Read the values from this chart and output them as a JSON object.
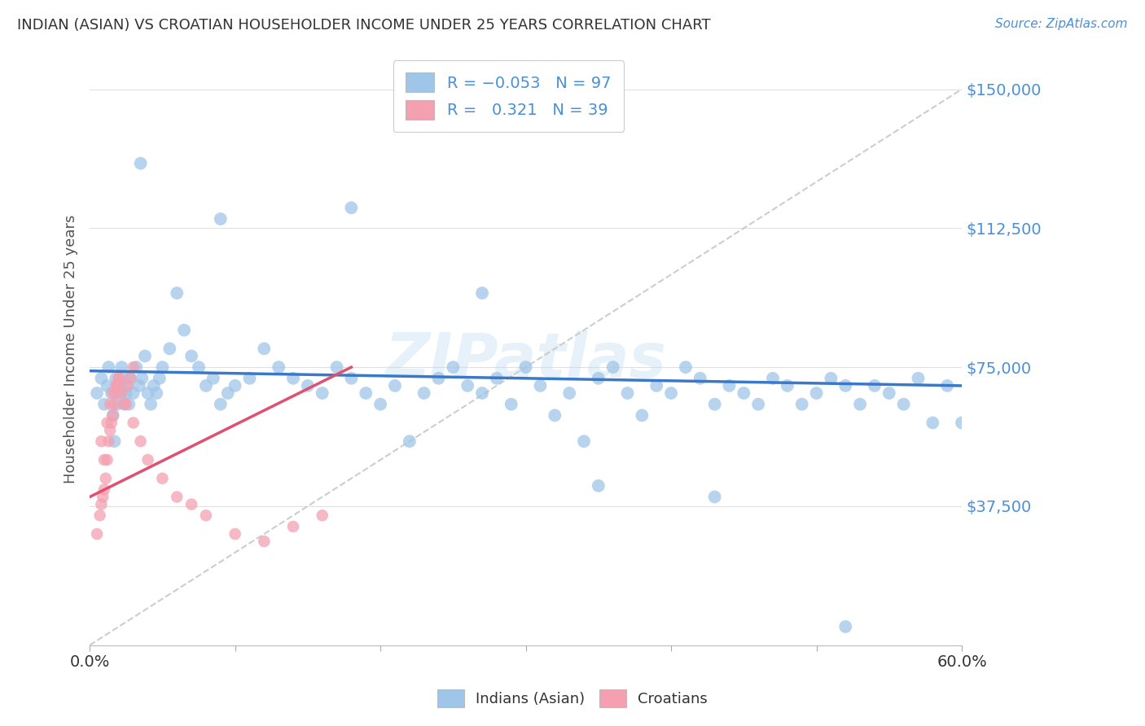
{
  "title": "INDIAN (ASIAN) VS CROATIAN HOUSEHOLDER INCOME UNDER 25 YEARS CORRELATION CHART",
  "source": "Source: ZipAtlas.com",
  "ylabel": "Householder Income Under 25 years",
  "xlim": [
    0.0,
    0.6
  ],
  "ylim": [
    0,
    160000
  ],
  "yticks": [
    0,
    37500,
    75000,
    112500,
    150000
  ],
  "ytick_labels": [
    "",
    "$37,500",
    "$75,000",
    "$112,500",
    "$150,000"
  ],
  "watermark": "ZIPatlas",
  "blue_color": "#9FC5E8",
  "pink_color": "#F4A0B0",
  "blue_line_color": "#3A78C9",
  "pink_line_color": "#E05070",
  "dashed_line_color": "#C8C8C8",
  "background_color": "#FFFFFF",
  "grid_color": "#E0E0E0",
  "title_color": "#333333",
  "axis_label_color": "#555555",
  "tick_color_right": "#4A90D9",
  "indian_x": [
    0.005,
    0.008,
    0.01,
    0.012,
    0.013,
    0.015,
    0.016,
    0.017,
    0.018,
    0.019,
    0.02,
    0.021,
    0.022,
    0.023,
    0.024,
    0.025,
    0.026,
    0.027,
    0.028,
    0.03,
    0.032,
    0.034,
    0.036,
    0.038,
    0.04,
    0.042,
    0.044,
    0.046,
    0.048,
    0.05,
    0.055,
    0.06,
    0.065,
    0.07,
    0.075,
    0.08,
    0.085,
    0.09,
    0.095,
    0.1,
    0.11,
    0.12,
    0.13,
    0.14,
    0.15,
    0.16,
    0.17,
    0.18,
    0.19,
    0.2,
    0.21,
    0.22,
    0.23,
    0.24,
    0.25,
    0.26,
    0.27,
    0.28,
    0.29,
    0.3,
    0.31,
    0.32,
    0.33,
    0.34,
    0.35,
    0.36,
    0.37,
    0.38,
    0.39,
    0.4,
    0.41,
    0.42,
    0.43,
    0.44,
    0.45,
    0.46,
    0.47,
    0.48,
    0.49,
    0.5,
    0.51,
    0.52,
    0.53,
    0.54,
    0.55,
    0.56,
    0.57,
    0.58,
    0.59,
    0.6,
    0.035,
    0.09,
    0.18,
    0.27,
    0.35,
    0.43,
    0.52
  ],
  "indian_y": [
    68000,
    72000,
    65000,
    70000,
    75000,
    68000,
    62000,
    55000,
    72000,
    65000,
    70000,
    68000,
    75000,
    72000,
    65000,
    68000,
    70000,
    65000,
    72000,
    68000,
    75000,
    70000,
    72000,
    78000,
    68000,
    65000,
    70000,
    68000,
    72000,
    75000,
    80000,
    95000,
    85000,
    78000,
    75000,
    70000,
    72000,
    65000,
    68000,
    70000,
    72000,
    80000,
    75000,
    72000,
    70000,
    68000,
    75000,
    72000,
    68000,
    65000,
    70000,
    55000,
    68000,
    72000,
    75000,
    70000,
    68000,
    72000,
    65000,
    75000,
    70000,
    62000,
    68000,
    55000,
    72000,
    75000,
    68000,
    62000,
    70000,
    68000,
    75000,
    72000,
    65000,
    70000,
    68000,
    65000,
    72000,
    70000,
    65000,
    68000,
    72000,
    70000,
    65000,
    70000,
    68000,
    65000,
    72000,
    60000,
    70000,
    60000,
    130000,
    115000,
    118000,
    95000,
    43000,
    40000,
    5000
  ],
  "croatian_x": [
    0.005,
    0.007,
    0.008,
    0.009,
    0.01,
    0.011,
    0.012,
    0.013,
    0.014,
    0.015,
    0.016,
    0.017,
    0.018,
    0.019,
    0.02,
    0.022,
    0.024,
    0.026,
    0.028,
    0.03,
    0.008,
    0.01,
    0.012,
    0.014,
    0.016,
    0.018,
    0.02,
    0.025,
    0.03,
    0.035,
    0.04,
    0.05,
    0.06,
    0.07,
    0.08,
    0.1,
    0.12,
    0.14,
    0.16
  ],
  "croatian_y": [
    30000,
    35000,
    38000,
    40000,
    42000,
    45000,
    50000,
    55000,
    58000,
    60000,
    62000,
    65000,
    68000,
    70000,
    72000,
    68000,
    65000,
    70000,
    72000,
    75000,
    55000,
    50000,
    60000,
    65000,
    68000,
    70000,
    72000,
    65000,
    60000,
    55000,
    50000,
    45000,
    40000,
    38000,
    35000,
    30000,
    28000,
    32000,
    35000
  ]
}
